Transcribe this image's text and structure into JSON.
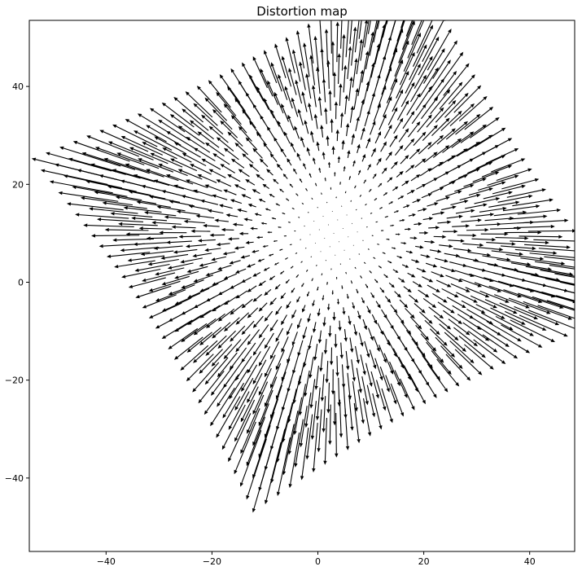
{
  "chart_data": {
    "type": "quiver",
    "title": "Distortion map",
    "xlabel": "",
    "ylabel": "",
    "xlim": [
      -54.5,
      48.5
    ],
    "ylim": [
      -55,
      53.5
    ],
    "xticks": [
      -40,
      -20,
      0,
      20,
      40
    ],
    "yticks": [
      -40,
      -20,
      0,
      20,
      40
    ],
    "xtick_labels": [
      "−40",
      "−20",
      "0",
      "20",
      "40"
    ],
    "ytick_labels": [
      "−40",
      "−20",
      "0",
      "20",
      "40"
    ],
    "grid": false,
    "arrow_color": "#000000",
    "field": {
      "grid_spacing": 2,
      "rotation_deg": 30,
      "u_range": [
        -16,
        16
      ],
      "v_range": [
        -16,
        16
      ],
      "center": [
        3,
        10
      ],
      "vector_gain": 0.075
    }
  }
}
